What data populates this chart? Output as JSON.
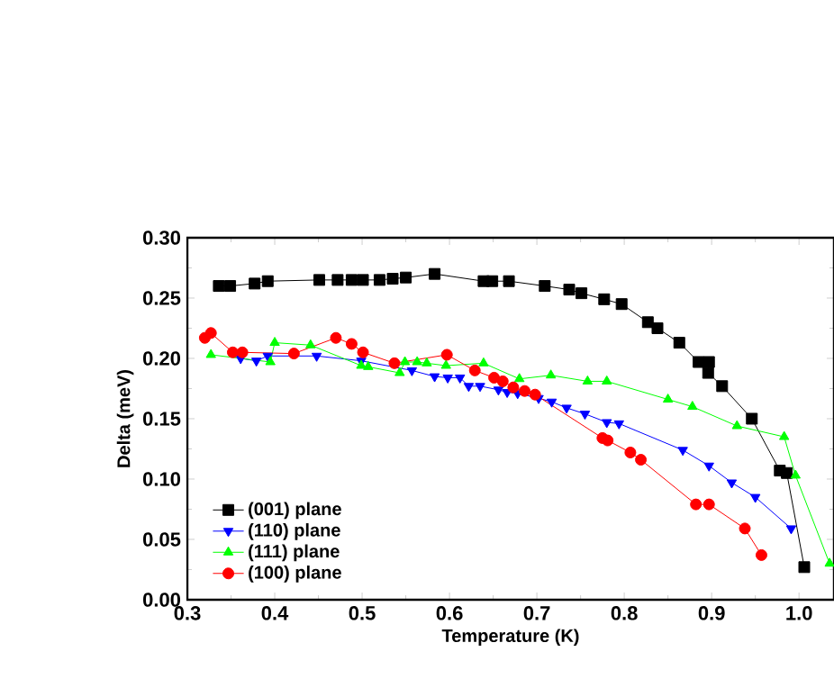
{
  "chart_data": {
    "type": "line",
    "xlabel": "Temperature (K)",
    "ylabel": "Delta (meV)",
    "xlim": [
      0.3,
      1.04
    ],
    "ylim": [
      0,
      0.3
    ],
    "xticks": [
      0.3,
      0.4,
      0.5,
      0.6,
      0.7,
      0.8,
      0.9,
      {
        "value": 1.0,
        "label": "1.0"
      }
    ],
    "yticks": [
      {
        "value": 0,
        "label": "0.00"
      },
      {
        "value": 0.05,
        "label": "0.05"
      },
      {
        "value": 0.1,
        "label": "0.10"
      },
      {
        "value": 0.15,
        "label": "0.15"
      },
      {
        "value": 0.2,
        "label": "0.20"
      },
      {
        "value": 0.25,
        "label": "0.25"
      },
      {
        "value": 0.3,
        "label": "0.30"
      }
    ],
    "legend": "bottom left",
    "grid": false,
    "series": [
      {
        "name": "(001) plane",
        "color": "#000000",
        "marker": "square",
        "x": [
          0.336,
          0.349,
          0.377,
          0.392,
          0.451,
          0.472,
          0.488,
          0.501,
          0.52,
          0.535,
          0.55,
          0.583,
          0.639,
          0.649,
          0.668,
          0.709,
          0.737,
          0.751,
          0.777,
          0.797,
          0.827,
          0.838,
          0.863,
          0.885,
          0.897,
          0.896,
          0.912,
          0.946,
          0.978,
          0.986,
          1.006
        ],
        "values": [
          0.26,
          0.26,
          0.262,
          0.264,
          0.265,
          0.265,
          0.265,
          0.265,
          0.265,
          0.266,
          0.267,
          0.27,
          0.264,
          0.264,
          0.264,
          0.26,
          0.257,
          0.254,
          0.249,
          0.245,
          0.23,
          0.225,
          0.213,
          0.197,
          0.197,
          0.188,
          0.177,
          0.15,
          0.107,
          0.105,
          0.027
        ]
      },
      {
        "name": "(110) plane",
        "color": "#0000ff",
        "marker": "triangle down",
        "x": [
          0.361,
          0.379,
          0.392,
          0.418,
          0.448,
          0.499,
          0.557,
          0.583,
          0.598,
          0.612,
          0.622,
          0.635,
          0.656,
          0.666,
          0.678,
          0.702,
          0.717,
          0.734,
          0.755,
          0.78,
          0.794,
          0.867,
          0.897,
          0.923,
          0.95,
          0.991
        ],
        "values": [
          0.2,
          0.198,
          0.202,
          null,
          0.202,
          0.198,
          0.19,
          0.185,
          0.184,
          0.184,
          0.177,
          0.177,
          0.174,
          0.172,
          0.171,
          0.167,
          0.164,
          0.159,
          0.154,
          0.147,
          0.146,
          0.124,
          0.111,
          0.097,
          0.085,
          0.059
        ]
      },
      {
        "name": "(111) plane",
        "color": "#00ff00",
        "marker": "triangle",
        "x": [
          0.327,
          0.395,
          0.4,
          0.441,
          0.499,
          0.507,
          0.543,
          0.549,
          0.563,
          0.574,
          0.596,
          0.639,
          0.68,
          0.716,
          0.758,
          0.78,
          0.85,
          0.878,
          0.929,
          0.983,
          0.996,
          1.035
        ],
        "values": [
          0.203,
          0.197,
          0.213,
          0.211,
          0.194,
          0.193,
          0.188,
          0.197,
          0.197,
          0.196,
          0.194,
          0.196,
          0.183,
          0.186,
          0.181,
          0.181,
          0.166,
          0.16,
          0.144,
          0.135,
          0.103,
          0.03
        ]
      },
      {
        "name": "(100) plane",
        "color": "#ff0000",
        "marker": "circle",
        "x": [
          0.32,
          0.327,
          0.352,
          0.363,
          0.422,
          0.47,
          0.488,
          0.501,
          0.537,
          0.597,
          0.629,
          0.651,
          0.661,
          0.673,
          0.686,
          0.698,
          0.775,
          0.781,
          0.807,
          0.819,
          0.882,
          0.897,
          0.938,
          0.957
        ],
        "values": [
          0.217,
          0.221,
          0.205,
          0.205,
          0.204,
          0.217,
          0.212,
          0.205,
          0.196,
          0.203,
          0.19,
          0.184,
          0.181,
          0.176,
          0.173,
          0.17,
          0.134,
          0.132,
          0.122,
          0.116,
          0.079,
          0.079,
          0.059,
          0.037
        ]
      }
    ]
  }
}
